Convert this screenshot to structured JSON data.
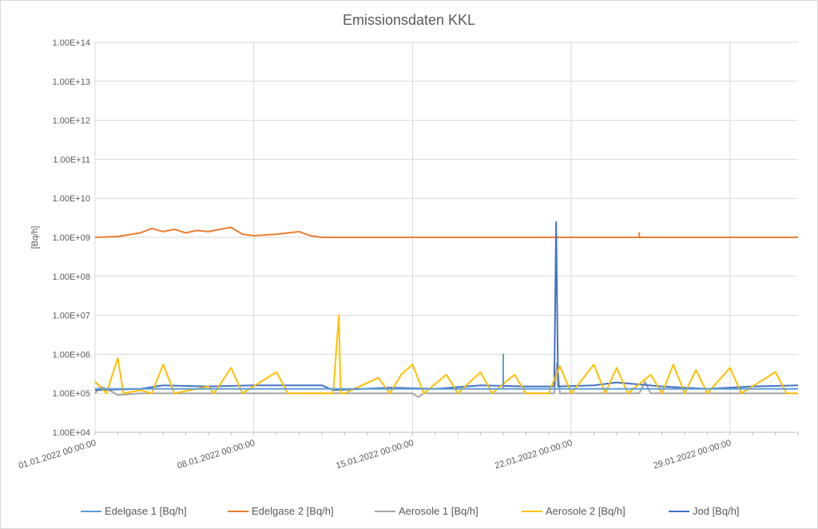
{
  "chart_data": {
    "type": "line",
    "title": "Emissionsdaten KKL",
    "xlabel": "",
    "ylabel": "[Bq/h]",
    "y_scale": "log",
    "ylim": [
      10000,
      100000000000000
    ],
    "y_tick_values": [
      10000,
      100000,
      1000000,
      10000000,
      100000000,
      1000000000,
      10000000000,
      100000000000,
      1000000000000,
      10000000000000,
      100000000000000
    ],
    "y_tick_labels": [
      "1.00E+04",
      "1.00E+05",
      "1.00E+06",
      "1.00E+07",
      "1.00E+08",
      "1.00E+09",
      "1.00E+10",
      "1.00E+11",
      "1.00E+12",
      "1.00E+13",
      "1.00E+14"
    ],
    "x_range": [
      "01.01.2022 00:00:00",
      "01.02.2022 00:00:00"
    ],
    "x_tick_labels": [
      "01.01.2022 00:00:00",
      "08.01.2022 00:00:00",
      "15.01.2022 00:00:00",
      "22.01.2022 00:00:00",
      "29.01.2022 00:00:00"
    ],
    "grid": true,
    "legend_position": "bottom",
    "series": [
      {
        "name": "Edelgase 1 [Bq/h]",
        "color": "#5B9BD5",
        "points": [
          [
            "01.01.2022 00:00:00",
            130000
          ],
          [
            "19.01.2022 00:00:00",
            130000
          ],
          [
            "19.01.2022 00:00:00",
            1000000
          ],
          [
            "19.01.2022 00:00:00",
            130000
          ],
          [
            "01.02.2022 00:00:00",
            130000
          ]
        ]
      },
      {
        "name": "Edelgase 2 [Bq/h]",
        "color": "#ED7D31",
        "points": [
          [
            "01.01.2022 00:00:00",
            1000000000
          ],
          [
            "02.01.2022 00:00:00",
            1050000000
          ],
          [
            "03.01.2022 00:00:00",
            1300000000
          ],
          [
            "03.01.2022 12:00:00",
            1700000000
          ],
          [
            "04.01.2022 00:00:00",
            1400000000
          ],
          [
            "04.01.2022 12:00:00",
            1600000000
          ],
          [
            "05.01.2022 00:00:00",
            1300000000
          ],
          [
            "05.01.2022 12:00:00",
            1500000000
          ],
          [
            "06.01.2022 00:00:00",
            1400000000
          ],
          [
            "06.01.2022 12:00:00",
            1600000000
          ],
          [
            "07.01.2022 00:00:00",
            1800000000
          ],
          [
            "07.01.2022 12:00:00",
            1200000000
          ],
          [
            "08.01.2022 00:00:00",
            1100000000
          ],
          [
            "09.01.2022 00:00:00",
            1200000000
          ],
          [
            "10.01.2022 00:00:00",
            1400000000
          ],
          [
            "10.01.2022 12:00:00",
            1100000000
          ],
          [
            "11.01.2022 00:00:00",
            1000000000
          ],
          [
            "25.01.2022 00:00:00",
            1000000000
          ],
          [
            "25.01.2022 00:00:00",
            1300000000
          ],
          [
            "25.01.2022 00:00:00",
            1000000000
          ],
          [
            "01.02.2022 00:00:00",
            1000000000
          ]
        ]
      },
      {
        "name": "Aerosole 1 [Bq/h]",
        "color": "#A5A5A5",
        "points": [
          [
            "01.01.2022 00:00:00",
            100000
          ],
          [
            "01.01.2022 06:00:00",
            150000
          ],
          [
            "01.01.2022 18:00:00",
            110000
          ],
          [
            "02.01.2022 00:00:00",
            90000
          ],
          [
            "03.01.2022 00:00:00",
            100000
          ],
          [
            "15.01.2022 00:00:00",
            100000
          ],
          [
            "15.01.2022 06:00:00",
            80000
          ],
          [
            "15.01.2022 12:00:00",
            100000
          ],
          [
            "21.01.2022 06:00:00",
            100000
          ],
          [
            "21.01.2022 09:00:00",
            600000
          ],
          [
            "21.01.2022 12:00:00",
            100000
          ],
          [
            "25.01.2022 00:00:00",
            100000
          ],
          [
            "25.01.2022 06:00:00",
            200000
          ],
          [
            "25.01.2022 12:00:00",
            100000
          ],
          [
            "01.02.2022 00:00:00",
            100000
          ]
        ]
      },
      {
        "name": "Aerosole 2 [Bq/h]",
        "color": "#FFC000",
        "points": [
          [
            "01.01.2022 00:00:00",
            200000
          ],
          [
            "01.01.2022 12:00:00",
            100000
          ],
          [
            "02.01.2022 00:00:00",
            800000
          ],
          [
            "02.01.2022 06:00:00",
            100000
          ],
          [
            "03.01.2022 00:00:00",
            120000
          ],
          [
            "03.01.2022 12:00:00",
            100000
          ],
          [
            "04.01.2022 00:00:00",
            550000
          ],
          [
            "04.01.2022 12:00:00",
            100000
          ],
          [
            "06.01.2022 00:00:00",
            150000
          ],
          [
            "06.01.2022 06:00:00",
            100000
          ],
          [
            "07.01.2022 00:00:00",
            450000
          ],
          [
            "07.01.2022 12:00:00",
            100000
          ],
          [
            "09.01.2022 00:00:00",
            350000
          ],
          [
            "09.01.2022 12:00:00",
            100000
          ],
          [
            "11.01.2022 12:00:00",
            100000
          ],
          [
            "11.01.2022 18:00:00",
            10000000
          ],
          [
            "11.01.2022 20:00:00",
            100000
          ],
          [
            "12.01.2022 00:00:00",
            100000
          ],
          [
            "13.01.2022 12:00:00",
            250000
          ],
          [
            "14.01.2022 00:00:00",
            100000
          ],
          [
            "14.01.2022 12:00:00",
            300000
          ],
          [
            "15.01.2022 00:00:00",
            550000
          ],
          [
            "15.01.2022 12:00:00",
            100000
          ],
          [
            "16.01.2022 12:00:00",
            300000
          ],
          [
            "17.01.2022 00:00:00",
            100000
          ],
          [
            "18.01.2022 00:00:00",
            350000
          ],
          [
            "18.01.2022 12:00:00",
            100000
          ],
          [
            "19.01.2022 12:00:00",
            300000
          ],
          [
            "20.01.2022 00:00:00",
            100000
          ],
          [
            "21.01.2022 00:00:00",
            100000
          ],
          [
            "21.01.2022 12:00:00",
            500000
          ],
          [
            "22.01.2022 00:00:00",
            100000
          ],
          [
            "23.01.2022 00:00:00",
            550000
          ],
          [
            "23.01.2022 12:00:00",
            100000
          ],
          [
            "24.01.2022 00:00:00",
            450000
          ],
          [
            "24.01.2022 12:00:00",
            100000
          ],
          [
            "25.01.2022 12:00:00",
            300000
          ],
          [
            "26.01.2022 00:00:00",
            100000
          ],
          [
            "26.01.2022 12:00:00",
            550000
          ],
          [
            "27.01.2022 00:00:00",
            100000
          ],
          [
            "27.01.2022 12:00:00",
            400000
          ],
          [
            "28.01.2022 00:00:00",
            100000
          ],
          [
            "29.01.2022 00:00:00",
            450000
          ],
          [
            "29.01.2022 12:00:00",
            100000
          ],
          [
            "31.01.2022 00:00:00",
            350000
          ],
          [
            "31.01.2022 12:00:00",
            100000
          ],
          [
            "01.02.2022 00:00:00",
            100000
          ]
        ]
      },
      {
        "name": "Jod [Bq/h]",
        "color": "#4472C4",
        "points": [
          [
            "01.01.2022 00:00:00",
            120000
          ],
          [
            "03.01.2022 00:00:00",
            130000
          ],
          [
            "04.01.2022 00:00:00",
            160000
          ],
          [
            "06.01.2022 00:00:00",
            150000
          ],
          [
            "08.01.2022 00:00:00",
            160000
          ],
          [
            "11.01.2022 00:00:00",
            160000
          ],
          [
            "11.01.2022 12:00:00",
            120000
          ],
          [
            "14.01.2022 00:00:00",
            140000
          ],
          [
            "16.01.2022 00:00:00",
            130000
          ],
          [
            "18.01.2022 00:00:00",
            160000
          ],
          [
            "20.01.2022 00:00:00",
            150000
          ],
          [
            "21.01.2022 06:00:00",
            150000
          ],
          [
            "21.01.2022 08:00:00",
            2500000000
          ],
          [
            "21.01.2022 10:00:00",
            150000
          ],
          [
            "23.01.2022 00:00:00",
            160000
          ],
          [
            "24.01.2022 00:00:00",
            190000
          ],
          [
            "26.01.2022 00:00:00",
            150000
          ],
          [
            "28.01.2022 00:00:00",
            130000
          ],
          [
            "30.01.2022 00:00:00",
            150000
          ],
          [
            "01.02.2022 00:00:00",
            160000
          ]
        ]
      }
    ]
  }
}
